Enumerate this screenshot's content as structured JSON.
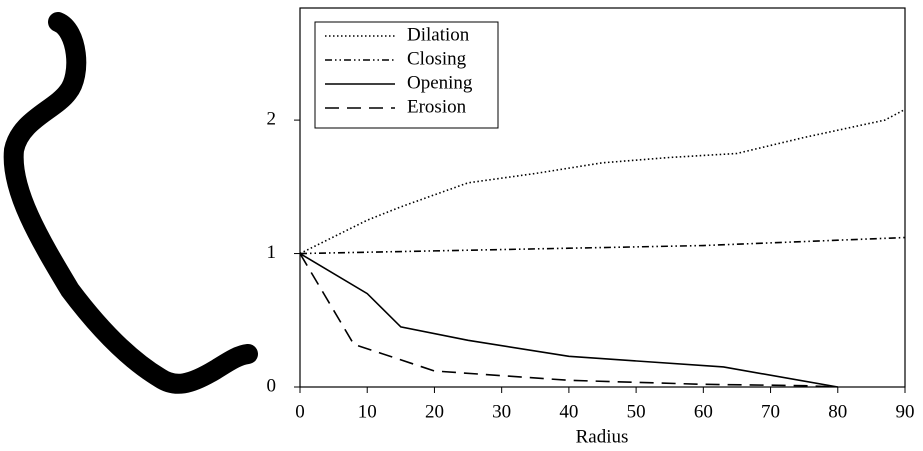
{
  "chart_data": {
    "type": "line",
    "x_label": "Radius",
    "xlim": [
      0,
      90
    ],
    "ylim": [
      0,
      2.84
    ],
    "xticks": [
      0,
      10,
      20,
      30,
      40,
      50,
      60,
      70,
      80,
      90
    ],
    "yticks": [
      0,
      1,
      2
    ],
    "legend": "top-left",
    "series": [
      {
        "name": "Dilation",
        "color": "#000000",
        "dash": "1.5 2.5",
        "x": [
          0,
          10,
          15,
          25,
          35,
          45,
          55,
          65,
          75,
          87,
          90
        ],
        "values": [
          1,
          1.25,
          1.35,
          1.53,
          1.6,
          1.68,
          1.72,
          1.75,
          1.87,
          2.0,
          2.08
        ]
      },
      {
        "name": "Closing",
        "color": "#000000",
        "dash": "7 3 1.5 3 1.5 3",
        "x": [
          0,
          20,
          40,
          60,
          80,
          90
        ],
        "values": [
          1,
          1.02,
          1.04,
          1.06,
          1.1,
          1.12
        ]
      },
      {
        "name": "Opening",
        "color": "#000000",
        "dash": "none",
        "x": [
          0,
          10,
          15,
          25,
          40,
          63,
          80
        ],
        "values": [
          1,
          0.7,
          0.45,
          0.35,
          0.23,
          0.15,
          0
        ]
      },
      {
        "name": "Erosion",
        "color": "#000000",
        "dash": "14 8",
        "x": [
          0,
          8,
          20,
          40,
          60,
          75,
          80
        ],
        "values": [
          1,
          0.32,
          0.12,
          0.05,
          0.02,
          0.01,
          0
        ]
      }
    ]
  }
}
